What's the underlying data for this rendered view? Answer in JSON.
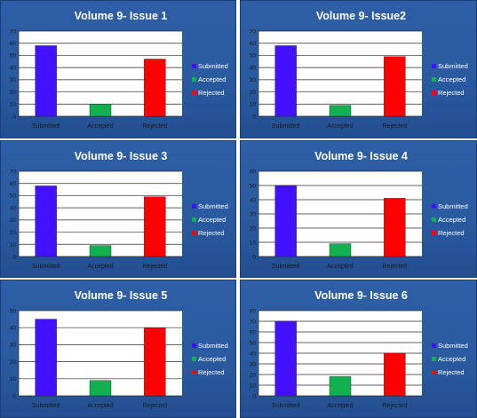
{
  "colors": {
    "submitted": "#4411ff",
    "accepted": "#11b050",
    "rejected": "#ff0000",
    "panel_bg": "#2a5aa0",
    "plot_bg": "#ffffff"
  },
  "chart_data": [
    {
      "type": "bar",
      "title": "Volume 9- Issue 1",
      "categories": [
        "Submitted",
        "Accepted",
        "Rejected"
      ],
      "values": [
        58,
        10,
        47
      ],
      "ylim": [
        0,
        70
      ],
      "yticks": [
        "0",
        "10",
        "20",
        "30",
        "40",
        "50",
        "60",
        "70"
      ],
      "legend": [
        "Submitted",
        "Accepted",
        "Rejected"
      ],
      "legend_position": "right",
      "grid": true
    },
    {
      "type": "bar",
      "title": "Volume 9- Issue2",
      "categories": [
        "Submitted",
        "Accepted",
        "Rejected"
      ],
      "values": [
        58,
        9,
        49
      ],
      "ylim": [
        0,
        70
      ],
      "yticks": [
        "0",
        "10",
        "20",
        "30",
        "40",
        "50",
        "60",
        "70"
      ],
      "legend": [
        "Submitted",
        "Accepted",
        "Rejected"
      ],
      "legend_position": "right",
      "grid": true
    },
    {
      "type": "bar",
      "title": "Volume 9- Issue 3",
      "categories": [
        "Submitted",
        "Accepted",
        "Rejected"
      ],
      "values": [
        58,
        9,
        49
      ],
      "ylim": [
        0,
        70
      ],
      "yticks": [
        "0",
        "10",
        "20",
        "30",
        "40",
        "50",
        "60",
        "70"
      ],
      "legend": [
        "Submitted",
        "Accepted",
        "Rejected"
      ],
      "legend_position": "right",
      "grid": true
    },
    {
      "type": "bar",
      "title": "Volume 9- Issue 4",
      "categories": [
        "Submitted",
        "Accepted",
        "Rejected"
      ],
      "values": [
        50,
        9,
        41
      ],
      "ylim": [
        0,
        60
      ],
      "yticks": [
        "0",
        "10",
        "20",
        "30",
        "40",
        "50",
        "60"
      ],
      "legend": [
        "Submitted",
        "Accepted",
        "Rejected"
      ],
      "legend_position": "right",
      "grid": true
    },
    {
      "type": "bar",
      "title": "Volume 9- Issue 5",
      "categories": [
        "Submitted",
        "Accepted",
        "Rejected"
      ],
      "values": [
        45,
        9,
        40
      ],
      "ylim": [
        0,
        50
      ],
      "yticks": [
        "0",
        "10",
        "20",
        "30",
        "40",
        "50"
      ],
      "legend": [
        "Submitted",
        "Accepted",
        "Rejected"
      ],
      "legend_position": "right",
      "grid": true
    },
    {
      "type": "bar",
      "title": "Volume 9- Issue 6",
      "categories": [
        "Submitted",
        "Accepted",
        "Rejected"
      ],
      "values": [
        70,
        18,
        40
      ],
      "ylim": [
        0,
        80
      ],
      "yticks": [
        "0",
        "10",
        "20",
        "30",
        "40",
        "50",
        "60",
        "70",
        "80"
      ],
      "legend": [
        "Submitted",
        "Accepted",
        "Rejected"
      ],
      "legend_position": "right",
      "grid": true
    }
  ]
}
